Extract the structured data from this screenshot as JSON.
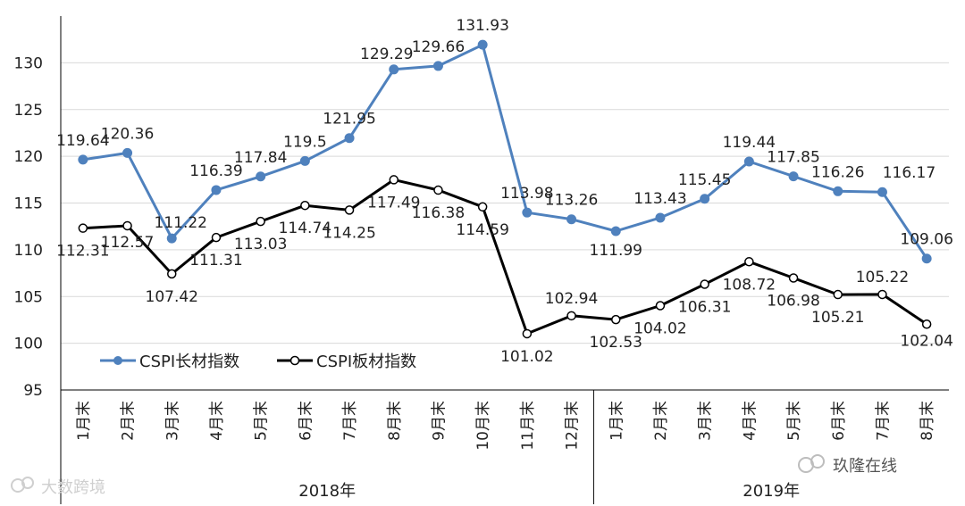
{
  "chart_data": {
    "type": "line",
    "categories": [
      "1月末",
      "2月末",
      "3月末",
      "4月末",
      "5月末",
      "6月末",
      "7月末",
      "8月末",
      "9月末",
      "10月末",
      "11月末",
      "12月末",
      "1月末",
      "2月末",
      "3月末",
      "4月末",
      "5月末",
      "6月末",
      "7月末",
      "8月末"
    ],
    "groups": [
      {
        "label": "2018年",
        "count": 12
      },
      {
        "label": "2019年",
        "count": 8
      }
    ],
    "series": [
      {
        "name": "CSPI长材指数",
        "color": "#4f81bd",
        "marker": "filled",
        "values": [
          119.64,
          120.36,
          111.22,
          116.39,
          117.84,
          119.5,
          121.95,
          129.29,
          129.66,
          131.93,
          113.98,
          113.26,
          111.99,
          113.43,
          115.45,
          119.44,
          117.85,
          116.26,
          116.17,
          109.06
        ]
      },
      {
        "name": "CSPI板材指数",
        "color": "#000000",
        "marker": "hollow",
        "values": [
          112.31,
          112.57,
          107.42,
          111.31,
          113.03,
          114.74,
          114.25,
          117.49,
          116.38,
          114.59,
          101.02,
          102.94,
          102.53,
          104.02,
          106.31,
          108.72,
          106.98,
          105.21,
          105.22,
          102.04
        ]
      }
    ],
    "ylim": [
      95,
      135
    ],
    "yticks": [
      95,
      100,
      105,
      110,
      115,
      120,
      125,
      130
    ],
    "grid": true,
    "legend": "bottom-left",
    "xlabel": "",
    "ylabel": "",
    "title": ""
  },
  "watermarks": [
    "大数跨境",
    "玖隆在线"
  ]
}
